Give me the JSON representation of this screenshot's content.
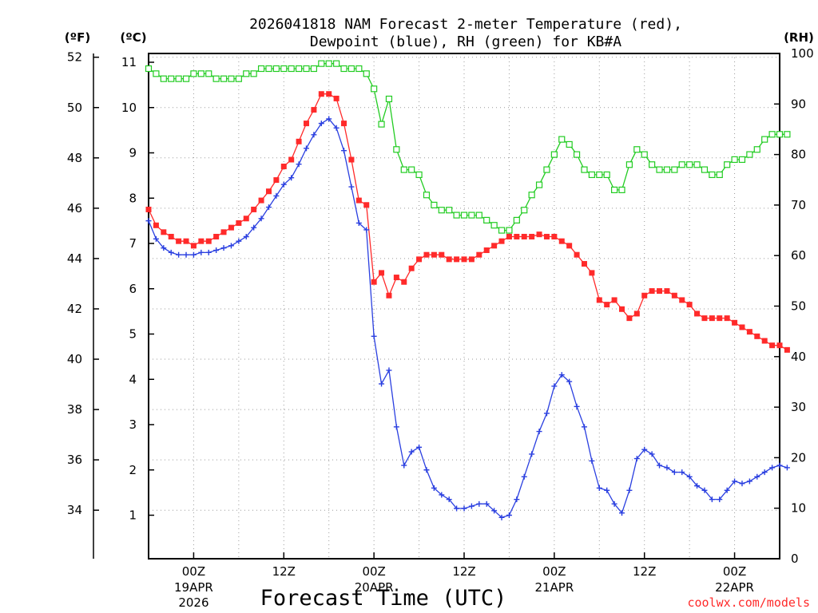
{
  "chart_data": {
    "type": "line",
    "title": [
      "2026041818 NAM Forecast 2-meter Temperature (red),",
      "Dewpoint (blue), RH (green) for KB#A"
    ],
    "xlabel": "Forecast Time (UTC)",
    "credit": "coolwx.com/models",
    "units": {
      "fahrenheit": "(ºF)",
      "celsius": "(ºC)",
      "rh": "(RH)"
    },
    "x_start_hour": 18,
    "x_step_hours": 1,
    "xlim_hours": [
      18,
      102
    ],
    "ylim_celsius": [
      0.0,
      11.3
    ],
    "ylim_rh": [
      0,
      100
    ],
    "grid": "dotted",
    "x_ticks": [
      {
        "hour": 24,
        "label": "00Z",
        "date": [
          "19APR",
          "2026"
        ]
      },
      {
        "hour": 36,
        "label": "12Z",
        "date": []
      },
      {
        "hour": 48,
        "label": "00Z",
        "date": [
          "20APR"
        ]
      },
      {
        "hour": 60,
        "label": "12Z",
        "date": []
      },
      {
        "hour": 72,
        "label": "00Z",
        "date": [
          "21APR"
        ]
      },
      {
        "hour": 84,
        "label": "12Z",
        "date": []
      },
      {
        "hour": 96,
        "label": "00Z",
        "date": [
          "22APR"
        ]
      }
    ],
    "y_ticks_celsius": [
      "1",
      "2",
      "3",
      "4",
      "5",
      "6",
      "7",
      "8",
      "9",
      "10",
      "11"
    ],
    "y_ticks_fahrenheit": [
      "34",
      "36",
      "38",
      "40",
      "42",
      "44",
      "46",
      "48",
      "50",
      "52"
    ],
    "y_ticks_rh": [
      "0",
      "10",
      "20",
      "30",
      "40",
      "50",
      "60",
      "70",
      "80",
      "90",
      "100"
    ],
    "series": [
      {
        "key": "temperature",
        "axis": "celsius",
        "color": "#ff2a2a",
        "marker": "filled-square",
        "values": [
          7.75,
          7.4,
          7.25,
          7.15,
          7.05,
          7.05,
          6.95,
          7.05,
          7.05,
          7.15,
          7.25,
          7.35,
          7.45,
          7.55,
          7.75,
          7.95,
          8.15,
          8.4,
          8.7,
          8.85,
          9.25,
          9.65,
          9.95,
          10.3,
          10.3,
          10.2,
          9.65,
          8.85,
          7.95,
          7.85,
          6.15,
          6.35,
          5.85,
          6.25,
          6.15,
          6.45,
          6.65,
          6.75,
          6.75,
          6.75,
          6.65,
          6.65,
          6.65,
          6.65,
          6.75,
          6.85,
          6.95,
          7.05,
          7.15,
          7.15,
          7.15,
          7.15,
          7.2,
          7.15,
          7.15,
          7.05,
          6.95,
          6.75,
          6.55,
          6.35,
          5.75,
          5.65,
          5.75,
          5.55,
          5.35,
          5.45,
          5.85,
          5.95,
          5.95,
          5.95,
          5.85,
          5.75,
          5.65,
          5.45,
          5.35,
          5.35,
          5.35,
          5.35,
          5.25,
          5.15,
          5.05,
          4.95,
          4.85,
          4.75,
          4.75,
          4.65
        ]
      },
      {
        "key": "dewpoint",
        "axis": "celsius",
        "color": "#2a3fe0",
        "marker": "plus",
        "values": [
          7.5,
          7.1,
          6.9,
          6.8,
          6.75,
          6.75,
          6.75,
          6.8,
          6.8,
          6.85,
          6.9,
          6.95,
          7.05,
          7.15,
          7.35,
          7.55,
          7.8,
          8.05,
          8.3,
          8.45,
          8.75,
          9.1,
          9.4,
          9.65,
          9.75,
          9.55,
          9.05,
          8.25,
          7.45,
          7.3,
          4.95,
          3.9,
          4.2,
          2.95,
          2.1,
          2.4,
          2.5,
          2.0,
          1.6,
          1.45,
          1.35,
          1.15,
          1.15,
          1.2,
          1.25,
          1.25,
          1.1,
          0.95,
          1.0,
          1.35,
          1.85,
          2.35,
          2.85,
          3.25,
          3.85,
          4.1,
          3.95,
          3.4,
          2.95,
          2.2,
          1.6,
          1.55,
          1.25,
          1.05,
          1.55,
          2.25,
          2.45,
          2.35,
          2.1,
          2.05,
          1.95,
          1.95,
          1.85,
          1.65,
          1.55,
          1.35,
          1.35,
          1.55,
          1.75,
          1.7,
          1.75,
          1.85,
          1.95,
          2.05,
          2.1,
          2.05
        ]
      },
      {
        "key": "rh",
        "axis": "rh",
        "color": "#22cc22",
        "marker": "open-square",
        "values": [
          97,
          96,
          95,
          95,
          95,
          95,
          96,
          96,
          96,
          95,
          95,
          95,
          95,
          96,
          96,
          97,
          97,
          97,
          97,
          97,
          97,
          97,
          97,
          98,
          98,
          98,
          97,
          97,
          97,
          96,
          93,
          86,
          91,
          81,
          77,
          77,
          76,
          72,
          70,
          69,
          69,
          68,
          68,
          68,
          68,
          67,
          66,
          65,
          65,
          67,
          69,
          72,
          74,
          77,
          80,
          83,
          82,
          80,
          77,
          76,
          76,
          76,
          73,
          73,
          78,
          81,
          80,
          78,
          77,
          77,
          77,
          78,
          78,
          78,
          77,
          76,
          76,
          78,
          79,
          79,
          80,
          81,
          83,
          84,
          84,
          84
        ]
      }
    ]
  }
}
